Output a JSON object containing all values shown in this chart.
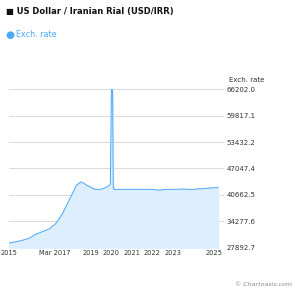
{
  "title": "US Dollar / Iranian Rial (USD/IRR)",
  "legend_label": "Exch. rate",
  "ylabel": "Exch. rate",
  "watermark": "© Chartoasis.com",
  "line_color": "#4da6ff",
  "fill_color": "#ddeeff",
  "background_color": "#ffffff",
  "grid_color": "#cccccc",
  "title_color": "#111111",
  "legend_dot_color": "#4da6ff",
  "yticks": [
    27892.7,
    34277.6,
    40662.5,
    47047.4,
    53432.2,
    59817.1,
    66202.0
  ],
  "xtick_labels": [
    "2015",
    "Mar 2017",
    "2019",
    "2020",
    "2021",
    "2022",
    "2023",
    "2025"
  ],
  "xtick_positions": [
    2015.0,
    2017.25,
    2019.0,
    2020.0,
    2021.0,
    2022.0,
    2023.0,
    2025.0
  ],
  "xlim": [
    2015.0,
    2025.5
  ],
  "ylim": [
    27892.7,
    66202.0
  ],
  "series_x": [
    2015.0,
    2015.1,
    2015.2,
    2015.3,
    2015.5,
    2015.75,
    2016.0,
    2016.1,
    2016.25,
    2016.5,
    2016.75,
    2017.0,
    2017.1,
    2017.25,
    2017.4,
    2017.6,
    2017.8,
    2018.0,
    2018.15,
    2018.3,
    2018.5,
    2018.65,
    2018.8,
    2019.0,
    2019.1,
    2019.25,
    2019.5,
    2019.75,
    2019.9,
    2019.95,
    2020.0,
    2020.03,
    2020.06,
    2020.09,
    2020.12,
    2020.15,
    2020.25,
    2020.5,
    2020.75,
    2021.0,
    2021.25,
    2021.5,
    2021.75,
    2022.0,
    2022.15,
    2022.3,
    2022.5,
    2022.65,
    2022.8,
    2023.0,
    2023.25,
    2023.5,
    2023.75,
    2024.0,
    2024.25,
    2024.5,
    2024.75,
    2025.0,
    2025.2
  ],
  "series_y": [
    29000,
    29100,
    29200,
    29300,
    29500,
    29800,
    30200,
    30500,
    31000,
    31500,
    32000,
    32500,
    33000,
    33500,
    34500,
    36000,
    38000,
    40000,
    41500,
    43000,
    43800,
    43500,
    43000,
    42500,
    42200,
    42000,
    42000,
    42500,
    43000,
    43200,
    65500,
    67000,
    65000,
    42500,
    42000,
    42000,
    42000,
    42000,
    42000,
    42000,
    42000,
    42000,
    42000,
    42000,
    41900,
    41800,
    41900,
    42000,
    42000,
    42000,
    42000,
    42100,
    42000,
    42000,
    42100,
    42200,
    42300,
    42400,
    42400
  ]
}
